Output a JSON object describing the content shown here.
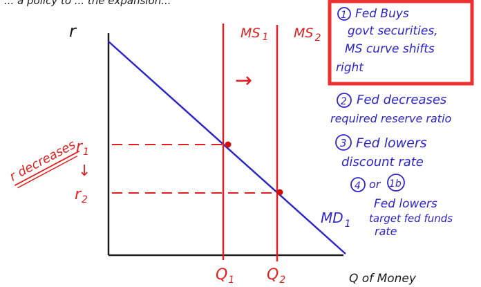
{
  "header_fragment": "... a policy to ... the expansion...",
  "axes": {
    "y_label": "r",
    "x_label": "Q of Money"
  },
  "curves": {
    "ms1": "MS",
    "ms1_sub": "1",
    "ms2": "MS",
    "ms2_sub": "2",
    "md": "MD",
    "md_sub": "1"
  },
  "levels": {
    "r1": "r",
    "r1_sub": "1",
    "r2": "r",
    "r2_sub": "2",
    "q1": "Q",
    "q1_sub": "1",
    "q2": "Q",
    "q2_sub": "2"
  },
  "side_note": "r decreases",
  "shift_arrow": "→",
  "down_arrow": "↓",
  "notes": {
    "n1_num": "1",
    "n1_lines": [
      "Fed Buys",
      "govt securities,",
      "MS curve shifts",
      "right"
    ],
    "n2_num": "2",
    "n2_lines": [
      "Fed decreases",
      "required reserve ratio"
    ],
    "n3_num": "3",
    "n3_lines": [
      "Fed lowers",
      "discount rate"
    ],
    "n4_num": "4",
    "n4_or": "or",
    "n4_alt": "1b",
    "n4_lines": [
      "Fed lowers",
      "target fed funds",
      "rate"
    ]
  },
  "colors": {
    "axis": "#1a1a1a",
    "supply": "#e02020",
    "demand": "#2c25c8",
    "highlight_box": "#ee3030",
    "notes": "#2c25c8",
    "equilibrium_dot": "#cc1010"
  }
}
